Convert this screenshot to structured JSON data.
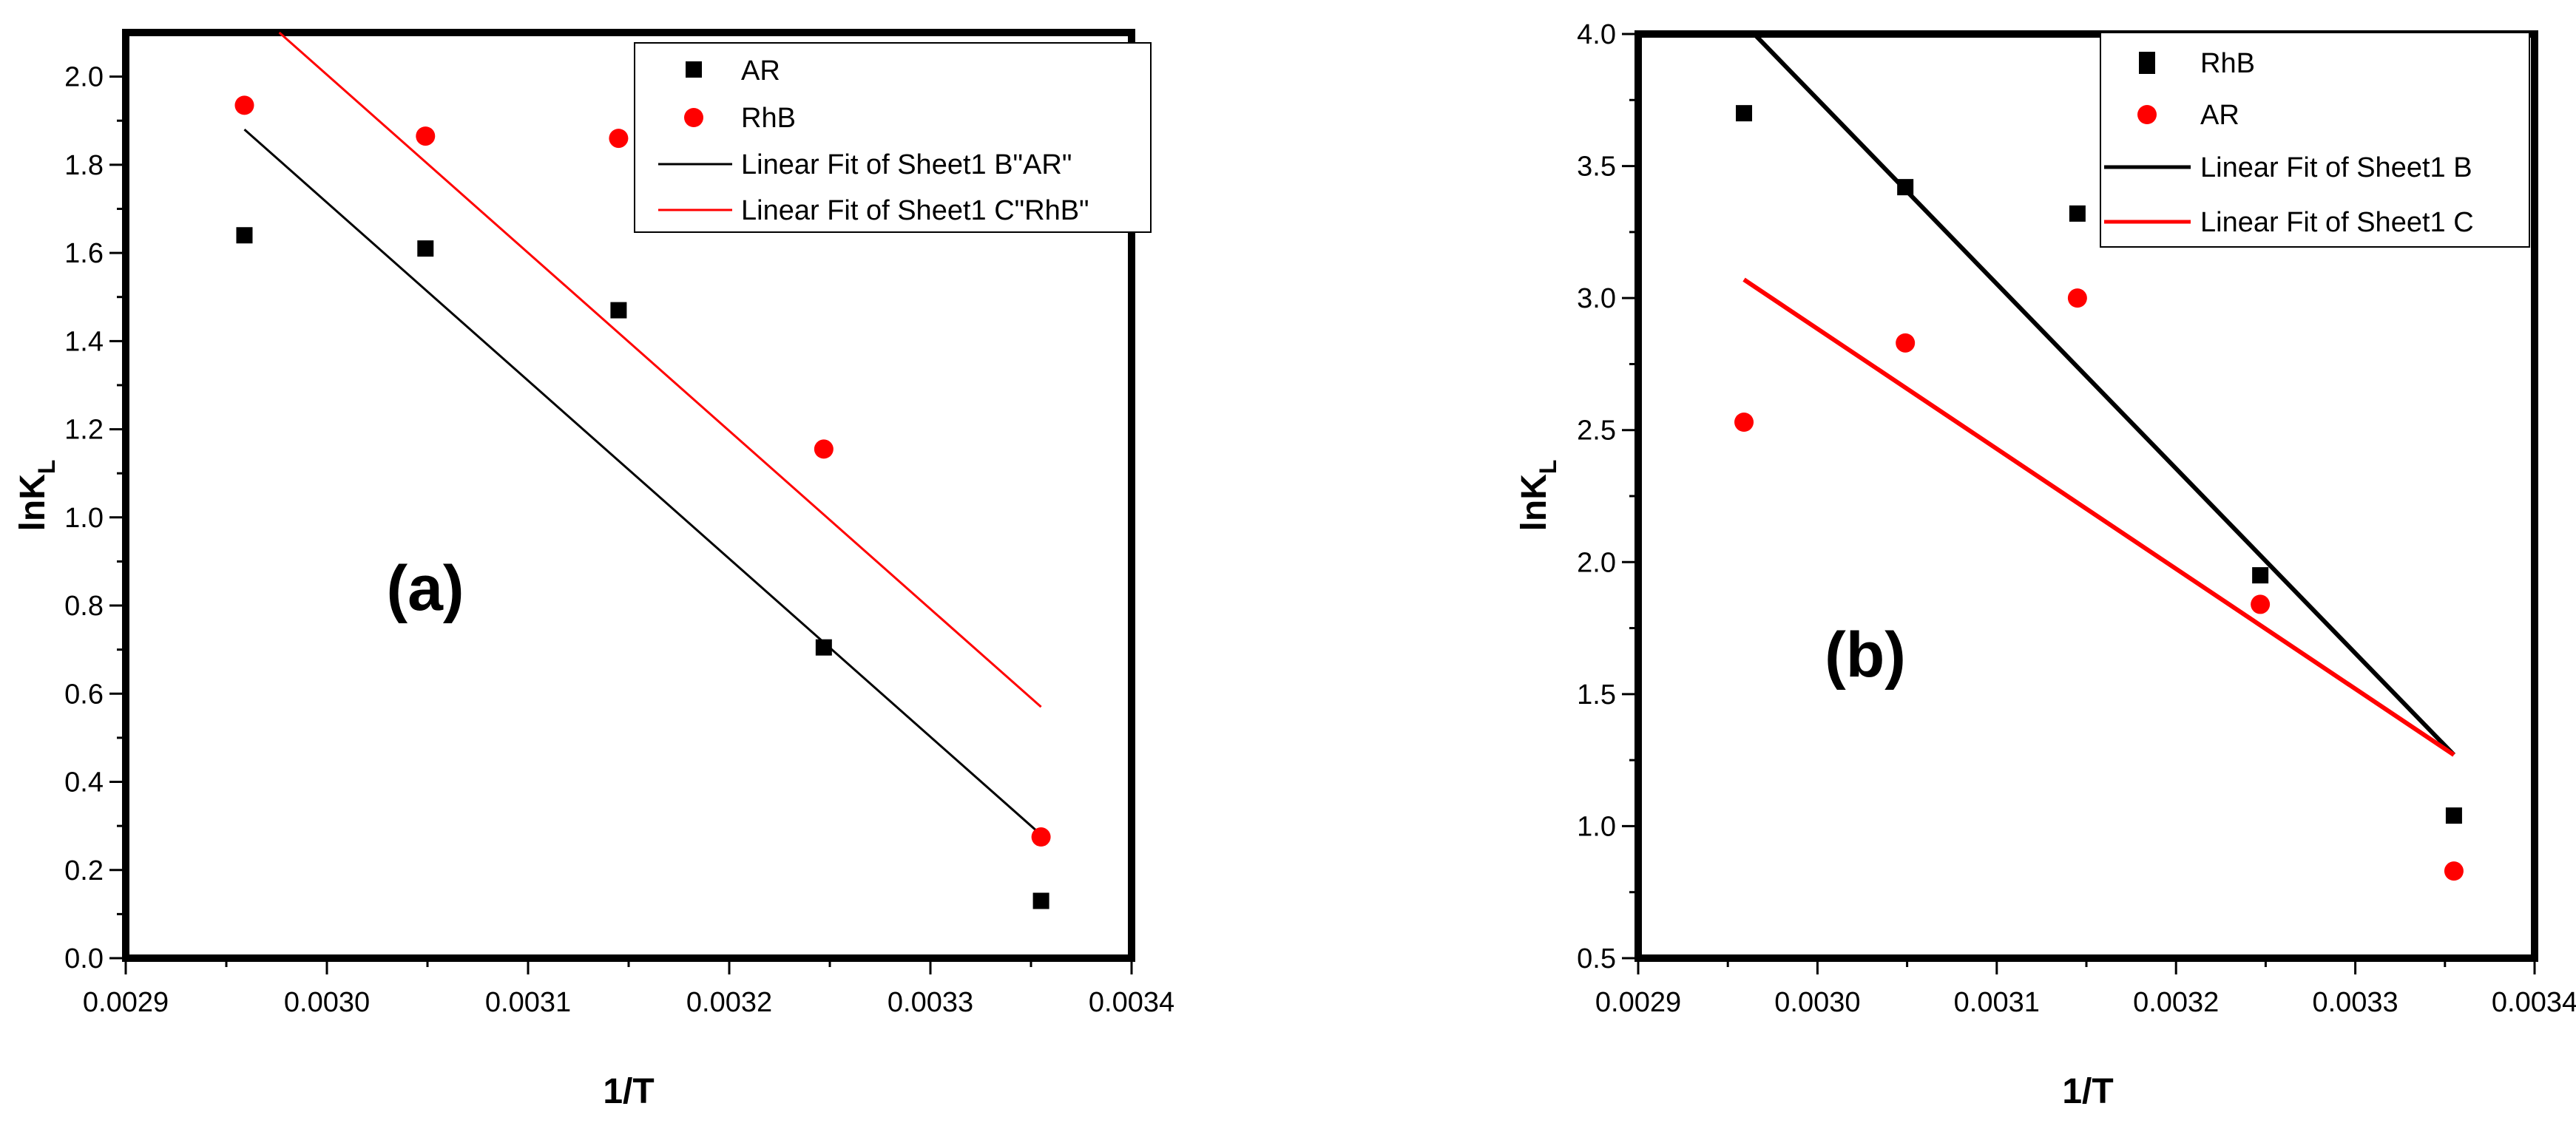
{
  "chart_data": [
    {
      "type": "scatter",
      "panel_label": "(a)",
      "xlabel": "1/T",
      "ylabel": "lnK",
      "ylabel_sub": "L",
      "xlim": [
        0.0029,
        0.0034
      ],
      "ylim": [
        0.0,
        2.1
      ],
      "xticks": [
        "0.0029",
        "0.0030",
        "0.0031",
        "0.0032",
        "0.0033",
        "0.0034"
      ],
      "yticks": [
        "0.0",
        "0.2",
        "0.4",
        "0.6",
        "0.8",
        "1.0",
        "1.2",
        "1.4",
        "1.6",
        "1.8",
        "2.0"
      ],
      "series": [
        {
          "name": "AR",
          "marker": "square",
          "color": "#000000",
          "x": [
            0.002959,
            0.003049,
            0.003145,
            0.003247,
            0.003355
          ],
          "y": [
            1.64,
            1.61,
            1.47,
            0.705,
            0.13
          ]
        },
        {
          "name": "RhB",
          "marker": "circle",
          "color": "#ff0000",
          "x": [
            0.002959,
            0.003049,
            0.003145,
            0.003247,
            0.003355
          ],
          "y": [
            1.935,
            1.865,
            1.86,
            1.155,
            0.275
          ]
        }
      ],
      "fits": [
        {
          "name": "Linear Fit of Sheet1 B\"AR\"",
          "color": "#000000",
          "x": [
            0.002959,
            0.003355
          ],
          "y": [
            1.88,
            0.28
          ]
        },
        {
          "name": "Linear Fit of Sheet1 C\"RhB\"",
          "color": "#ff0000",
          "x": [
            0.002959,
            0.003355
          ],
          "y": [
            2.17,
            0.57
          ]
        }
      ],
      "legend_position": "top-right"
    },
    {
      "type": "scatter",
      "panel_label": "(b)",
      "xlabel": "1/T",
      "ylabel": "lnK",
      "ylabel_sub": "L",
      "xlim": [
        0.0029,
        0.0034
      ],
      "ylim": [
        0.5,
        4.0
      ],
      "xticks": [
        "0.0029",
        "0.0030",
        "0.0031",
        "0.0032",
        "0.0033",
        "0.0034"
      ],
      "yticks": [
        "0.5",
        "1.0",
        "1.5",
        "2.0",
        "2.5",
        "3.0",
        "3.5",
        "4.0"
      ],
      "series": [
        {
          "name": "RhB",
          "marker": "square",
          "color": "#000000",
          "x": [
            0.002959,
            0.003049,
            0.003145,
            0.003247,
            0.003355
          ],
          "y": [
            3.7,
            3.42,
            3.32,
            1.95,
            1.04
          ]
        },
        {
          "name": "AR",
          "marker": "circle",
          "color": "#ff0000",
          "x": [
            0.002959,
            0.003049,
            0.003145,
            0.003247,
            0.003355
          ],
          "y": [
            2.53,
            2.83,
            3.0,
            1.84,
            0.83
          ]
        }
      ],
      "fits": [
        {
          "name": "Linear Fit of Sheet1 B",
          "color": "#000000",
          "x": [
            0.002959,
            0.003355
          ],
          "y": [
            4.04,
            1.27
          ]
        },
        {
          "name": "Linear Fit of Sheet1 C",
          "color": "#ff0000",
          "x": [
            0.002959,
            0.003355
          ],
          "y": [
            3.07,
            1.27
          ]
        }
      ],
      "legend_position": "top-right"
    }
  ]
}
